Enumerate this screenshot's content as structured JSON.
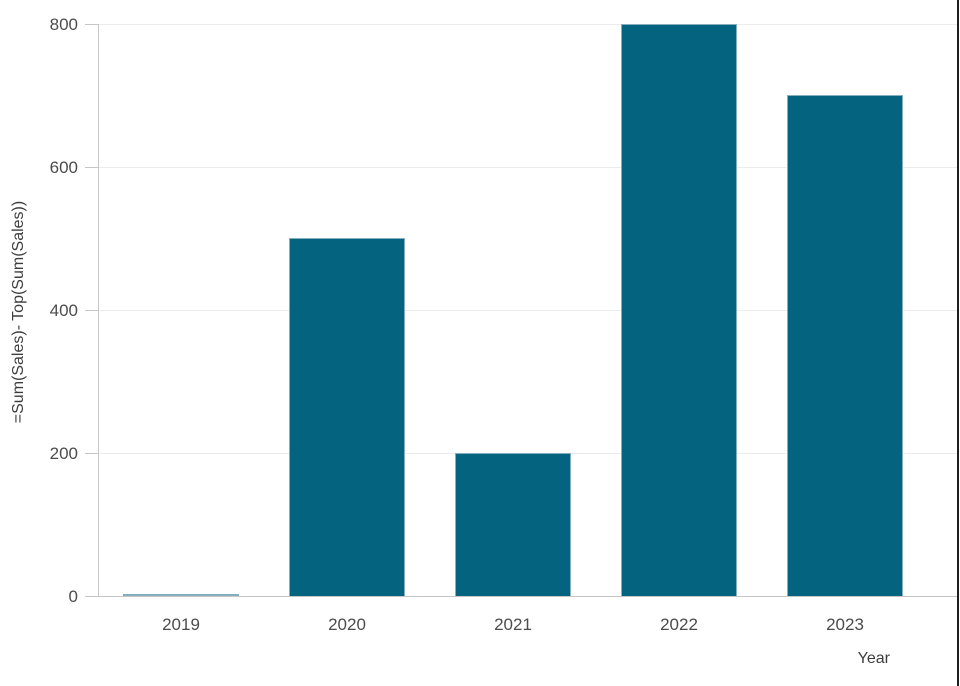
{
  "chart_data": {
    "type": "bar",
    "categories": [
      "2019",
      "2020",
      "2021",
      "2022",
      "2023"
    ],
    "values": [
      0,
      500,
      200,
      800,
      700
    ],
    "title": "",
    "xlabel": "Year",
    "ylabel": "=Sum(Sales)- Top(Sum(Sales))",
    "ylim": [
      0,
      800
    ],
    "yticks": [
      0,
      200,
      400,
      600,
      800
    ],
    "grid": true,
    "legend": false,
    "bar_color": "#04637E",
    "bar_edge_color": "#85AFBF",
    "gridline_color": "#ECECEC",
    "axis_color": "#C6C6C6",
    "tick_label_color": "#4C4C4C",
    "axis_title_color": "#3D3D3D",
    "background_color": "#FFFFFF"
  }
}
